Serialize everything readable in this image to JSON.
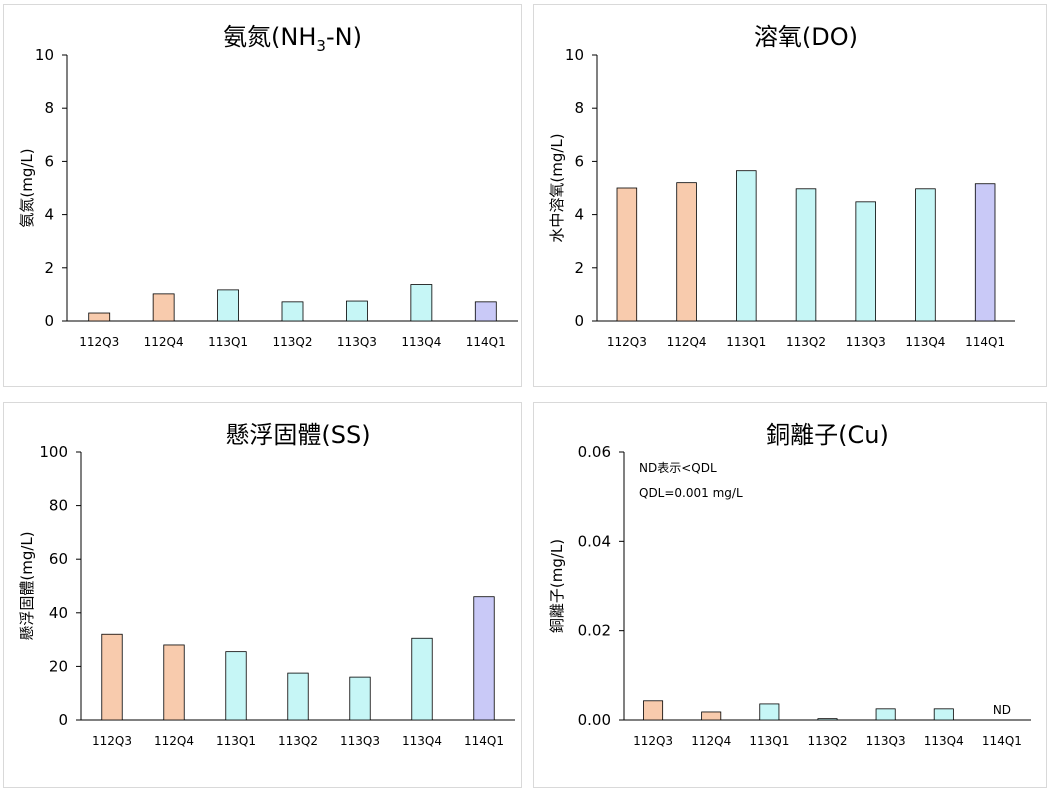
{
  "colors": {
    "q112": "#f8cbad",
    "q113": "#c6f6f6",
    "q114": "#c9c9f7",
    "stroke": "#000000"
  },
  "chart_data": [
    {
      "type": "bar",
      "title": {
        "main": "氨氮(NH",
        "sub": "3",
        "tail": "-N)"
      },
      "ylabel": "氨氮(mg/L)",
      "categories": [
        "112Q3",
        "112Q4",
        "113Q1",
        "113Q2",
        "113Q3",
        "113Q4",
        "114Q1"
      ],
      "values": [
        0.3,
        1.02,
        1.17,
        0.72,
        0.75,
        1.37,
        0.72
      ],
      "ylim": [
        0,
        10
      ],
      "yticks": [
        "0",
        "2",
        "4",
        "6",
        "8",
        "10"
      ],
      "notes": [],
      "bar_labels": []
    },
    {
      "type": "bar",
      "title": {
        "main": "溶氧(DO)",
        "sub": "",
        "tail": ""
      },
      "ylabel": "水中溶氧(mg/L)",
      "categories": [
        "112Q3",
        "112Q4",
        "113Q1",
        "113Q2",
        "113Q3",
        "113Q4",
        "114Q1"
      ],
      "values": [
        5.0,
        5.2,
        5.65,
        4.97,
        4.48,
        4.97,
        5.16
      ],
      "ylim": [
        0,
        10
      ],
      "yticks": [
        "0",
        "2",
        "4",
        "6",
        "8",
        "10"
      ],
      "notes": [],
      "bar_labels": []
    },
    {
      "type": "bar",
      "title": {
        "main": "懸浮固體(SS)",
        "sub": "",
        "tail": ""
      },
      "ylabel": "懸浮固體(mg/L)",
      "categories": [
        "112Q3",
        "112Q4",
        "113Q1",
        "113Q2",
        "113Q3",
        "113Q4",
        "114Q1"
      ],
      "values": [
        32,
        28,
        25.5,
        17.5,
        16,
        30.5,
        46
      ],
      "ylim": [
        0,
        100
      ],
      "yticks": [
        "0",
        "20",
        "40",
        "60",
        "80",
        "100"
      ],
      "notes": [],
      "bar_labels": []
    },
    {
      "type": "bar",
      "title": {
        "main": "銅離子(Cu)",
        "sub": "",
        "tail": ""
      },
      "ylabel": "銅離子(mg/L)",
      "categories": [
        "112Q3",
        "112Q4",
        "113Q1",
        "113Q2",
        "113Q3",
        "113Q4",
        "114Q1"
      ],
      "values": [
        0.0043,
        0.0018,
        0.0036,
        0.0003,
        0.0025,
        0.0025,
        0
      ],
      "ylim": [
        0,
        0.06
      ],
      "yticks": [
        "0.00",
        "0.02",
        "0.04",
        "0.06"
      ],
      "notes": [
        "ND表示<QDL",
        "QDL=0.001 mg/L"
      ],
      "bar_labels": [
        "",
        "",
        "",
        "",
        "",
        "",
        "ND"
      ]
    }
  ]
}
